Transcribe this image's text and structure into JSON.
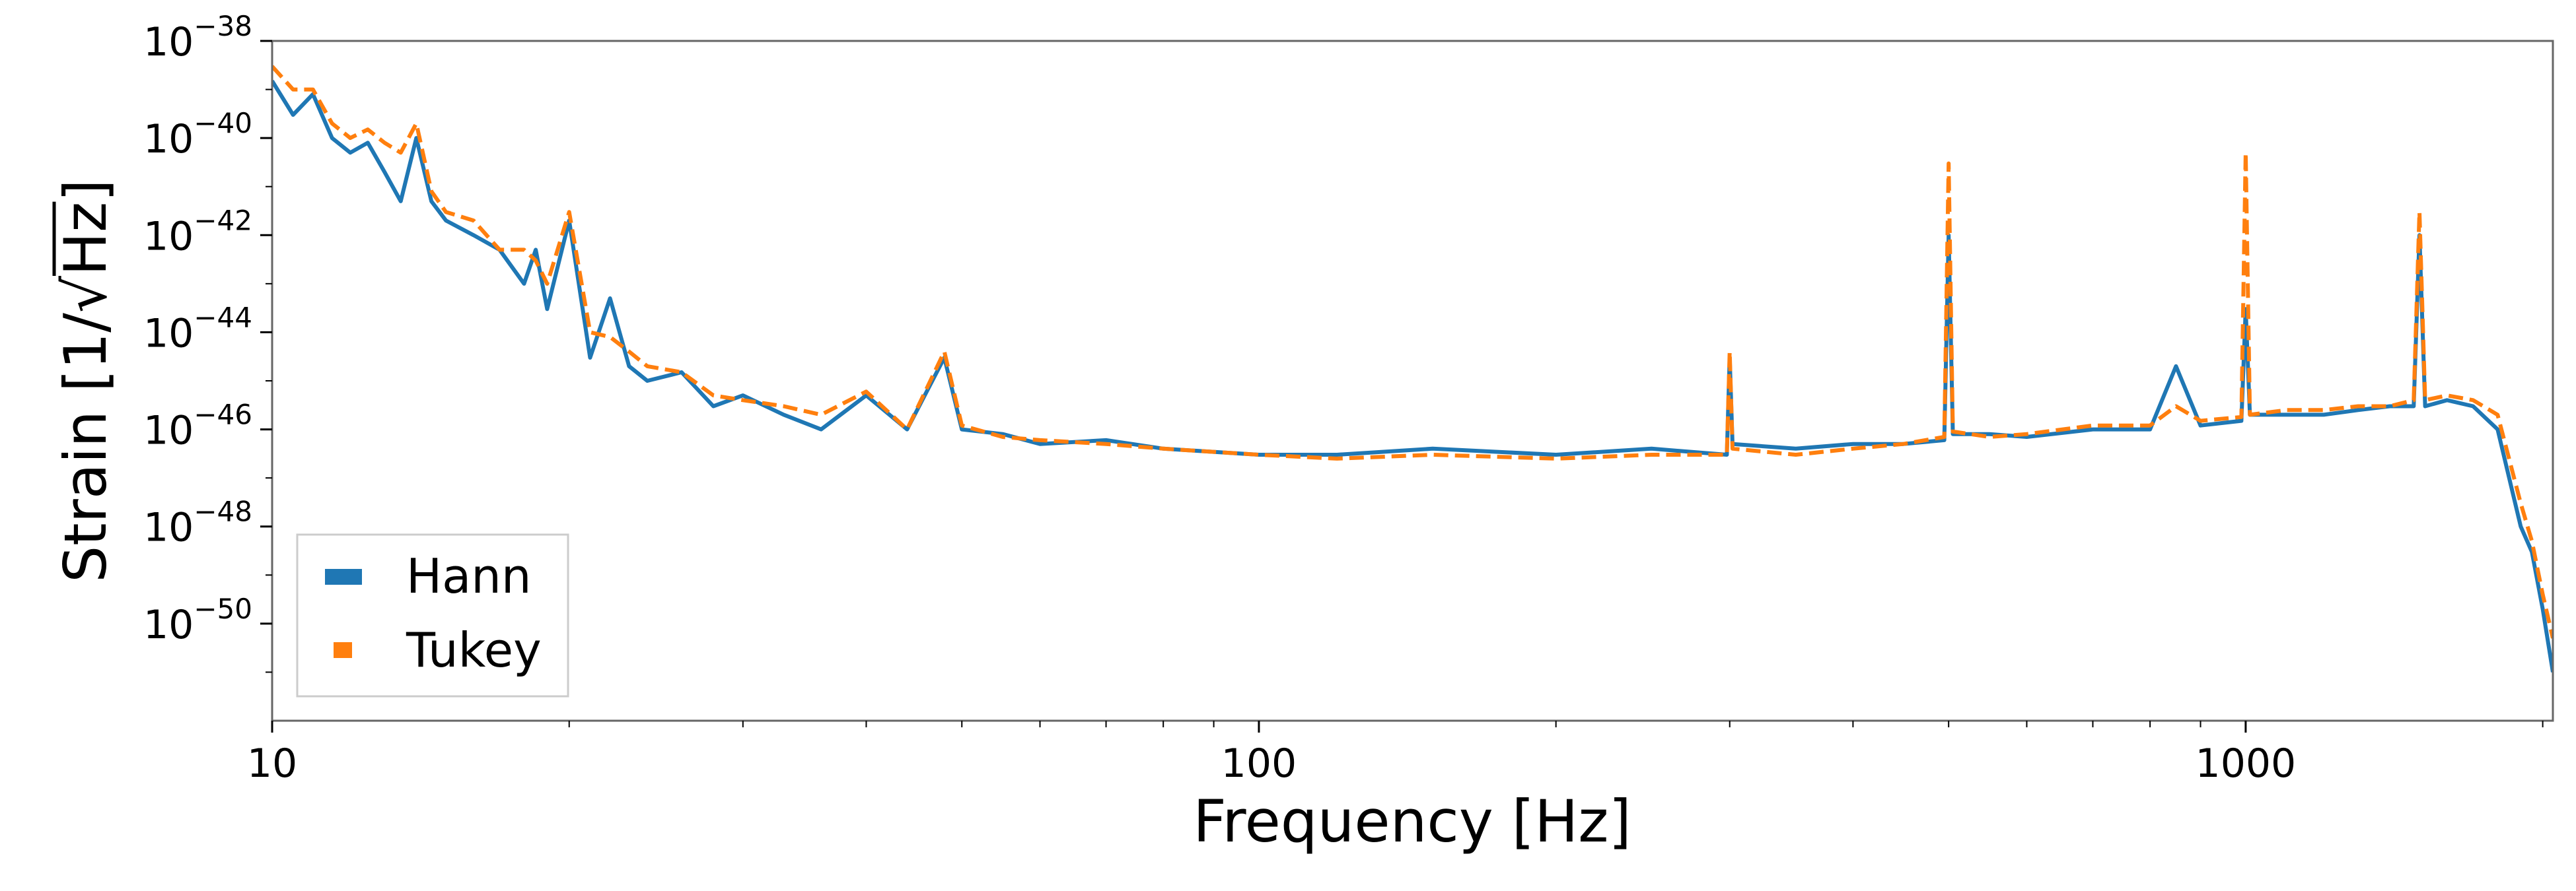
{
  "chart_data": {
    "type": "line",
    "xlabel": "Frequency [Hz]",
    "ylabel": {
      "prefix": "Strain [1/",
      "radicand": "Hz",
      "suffix": "]"
    },
    "x_scale": "log",
    "y_scale": "log",
    "xlim": [
      10,
      2048
    ],
    "ylim": [
      1e-52,
      1e-38
    ],
    "x_ticks": [
      {
        "value": 10,
        "label": "10"
      },
      {
        "value": 100,
        "label": "100"
      },
      {
        "value": 1000,
        "label": "1000"
      }
    ],
    "y_ticks": [
      {
        "value": 1e-38,
        "base": "10",
        "exponent": "−38"
      },
      {
        "value": 1e-40,
        "base": "10",
        "exponent": "−40"
      },
      {
        "value": 1e-42,
        "base": "10",
        "exponent": "−42"
      },
      {
        "value": 1e-44,
        "base": "10",
        "exponent": "−44"
      },
      {
        "value": 1e-46,
        "base": "10",
        "exponent": "−46"
      },
      {
        "value": 1e-48,
        "base": "10",
        "exponent": "−48"
      },
      {
        "value": 1e-50,
        "base": "10",
        "exponent": "−50"
      }
    ],
    "grid": false,
    "legend": "lower-left",
    "series": [
      {
        "name": "Hann",
        "color": "#1f77b4",
        "dash": "solid",
        "x": [
          10,
          10.5,
          11,
          11.5,
          12,
          12.5,
          13,
          13.5,
          14,
          14.5,
          15,
          16,
          17,
          18,
          18.5,
          19,
          20,
          21,
          22,
          23,
          24,
          26,
          28,
          30,
          33,
          36,
          40,
          44,
          48,
          50,
          55,
          60,
          70,
          80,
          100,
          120,
          150,
          200,
          250,
          298,
          300,
          302,
          350,
          400,
          450,
          495,
          500,
          505,
          550,
          600,
          700,
          800,
          850,
          900,
          990,
          1000,
          1010,
          1100,
          1200,
          1300,
          1400,
          1480,
          1500,
          1520,
          1600,
          1700,
          1800,
          1900,
          1950,
          2000,
          2048
        ],
        "y": [
          1.5e-39,
          3e-40,
          8e-40,
          1e-40,
          5e-41,
          8e-41,
          2e-41,
          5e-42,
          1e-40,
          5e-42,
          2e-42,
          1e-42,
          5e-43,
          1e-43,
          5e-43,
          3e-44,
          2e-42,
          3e-45,
          5e-44,
          2e-45,
          1e-45,
          1.5e-45,
          3e-46,
          5e-46,
          2e-46,
          1e-46,
          5e-46,
          1e-46,
          3e-45,
          1e-46,
          8e-47,
          5e-47,
          6e-47,
          4e-47,
          3e-47,
          3e-47,
          4e-47,
          3e-47,
          4e-47,
          3e-47,
          3e-45,
          5e-47,
          4e-47,
          5e-47,
          5e-47,
          6e-47,
          1e-42,
          8e-47,
          8e-47,
          7e-47,
          1e-46,
          1e-46,
          2e-45,
          1.2e-46,
          1.5e-46,
          3e-44,
          2e-46,
          2e-46,
          2e-46,
          2.5e-46,
          3e-46,
          3e-46,
          1e-42,
          3e-46,
          4e-46,
          3e-46,
          1e-46,
          1e-48,
          3e-49,
          2e-50,
          1e-51
        ]
      },
      {
        "name": "Tukey",
        "color": "#ff7f0e",
        "dash": "dashed",
        "x": [
          10,
          10.5,
          11,
          11.5,
          12,
          12.5,
          13,
          13.5,
          14,
          14.5,
          15,
          16,
          17,
          18,
          18.5,
          19,
          20,
          21,
          22,
          23,
          24,
          26,
          28,
          30,
          33,
          36,
          40,
          44,
          48,
          50,
          55,
          60,
          70,
          80,
          100,
          120,
          150,
          200,
          250,
          298,
          300,
          302,
          350,
          400,
          450,
          495,
          500,
          505,
          550,
          600,
          700,
          800,
          850,
          900,
          990,
          1000,
          1010,
          1100,
          1200,
          1300,
          1400,
          1480,
          1500,
          1520,
          1600,
          1700,
          1800,
          1900,
          1950,
          2000,
          2048
        ],
        "y": [
          3e-39,
          1e-39,
          1e-39,
          2e-40,
          1e-40,
          1.5e-40,
          8e-41,
          5e-41,
          2e-40,
          8e-42,
          3e-42,
          2e-42,
          5e-43,
          5e-43,
          3e-43,
          1e-43,
          3e-42,
          1e-44,
          8e-45,
          4e-45,
          2e-45,
          1.5e-45,
          5e-46,
          4e-46,
          3e-46,
          2e-46,
          6e-46,
          1e-46,
          4e-45,
          1.2e-46,
          7e-47,
          6e-47,
          5e-47,
          4e-47,
          3e-47,
          2.5e-47,
          3e-47,
          2.5e-47,
          3e-47,
          3e-47,
          4e-45,
          4e-47,
          3e-47,
          4e-47,
          5e-47,
          7e-47,
          3e-41,
          9e-47,
          7e-47,
          8e-47,
          1.2e-46,
          1.2e-46,
          3e-46,
          1.5e-46,
          1.8e-46,
          5e-41,
          2e-46,
          2.5e-46,
          2.5e-46,
          3e-46,
          3e-46,
          4e-46,
          3e-42,
          4e-46,
          5e-46,
          4e-46,
          2e-46,
          3e-48,
          5e-49,
          4e-50,
          5e-51
        ]
      }
    ]
  }
}
